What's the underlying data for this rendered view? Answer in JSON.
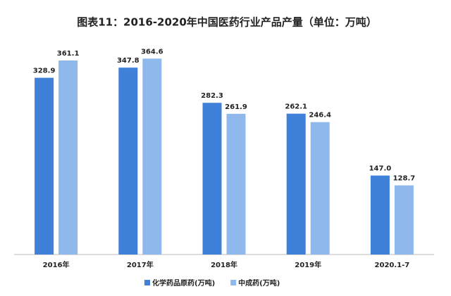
{
  "chart_data": {
    "type": "bar",
    "title": "图表11：2016-2020年中国医药行业产品产量（单位：万吨）",
    "categories": [
      "2016年",
      "2017年",
      "2018年",
      "2019年",
      "2020.1-7"
    ],
    "series": [
      {
        "name": "化学药品原药(万吨)",
        "color": "#3f80d8",
        "values": [
          328.9,
          347.8,
          282.3,
          262.1,
          147.0
        ],
        "value_labels": [
          "328.9",
          "347.8",
          "282.3",
          "262.1",
          "147.0"
        ]
      },
      {
        "name": "中成药(万吨)",
        "color": "#8fb9ec",
        "values": [
          361.1,
          364.6,
          261.9,
          246.4,
          128.7
        ],
        "value_labels": [
          "361.1",
          "364.6",
          "261.9",
          "246.4",
          "128.7"
        ]
      }
    ],
    "ylim": [
      0,
      420
    ],
    "legend": "bottom"
  }
}
